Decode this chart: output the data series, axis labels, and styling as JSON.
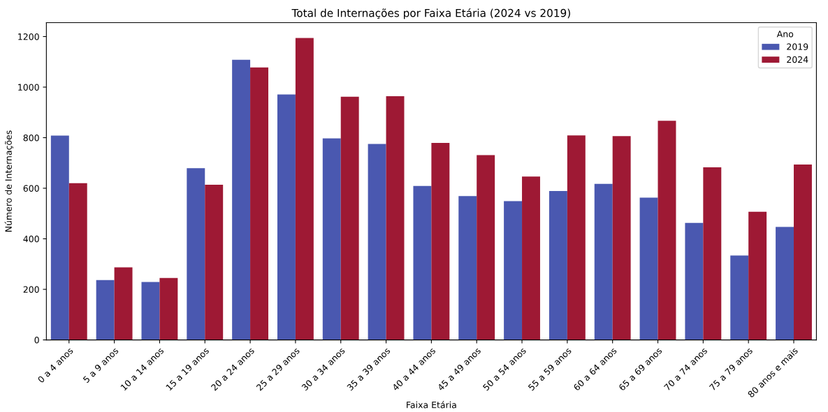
{
  "chart_data": {
    "type": "bar",
    "title": "Total de Internações por Faixa Etária (2024 vs 2019)",
    "xlabel": "Faixa Etária",
    "ylabel": "Número de Internações",
    "legend_title": "Ano",
    "legend": "top right",
    "categories": [
      "0 a 4 anos",
      "5 a 9 anos",
      "10 a 14 anos",
      "15 a 19 anos",
      "20 a 24 anos",
      "25 a 29 anos",
      "30 a 34 anos",
      "35 a 39 anos",
      "40 a 44 anos",
      "45 a 49 anos",
      "50 a 54 anos",
      "55 a 59 anos",
      "60 a 64 anos",
      "65 a 69 anos",
      "70 a 74 anos",
      "75 a 79 anos",
      "80 anos e mais"
    ],
    "series": [
      {
        "name": "2019",
        "color": "#4a58b0",
        "values": [
          808,
          237,
          229,
          679,
          1108,
          971,
          797,
          775,
          609,
          569,
          549,
          589,
          617,
          563,
          463,
          334,
          447
        ]
      },
      {
        "name": "2024",
        "color": "#9e1934",
        "values": [
          620,
          287,
          245,
          614,
          1078,
          1194,
          962,
          964,
          779,
          731,
          646,
          809,
          806,
          867,
          683,
          507,
          694
        ]
      }
    ],
    "ylim": [
      0,
      1255
    ],
    "yticks": [
      0,
      200,
      400,
      600,
      800,
      1000,
      1200
    ],
    "grid": false
  }
}
